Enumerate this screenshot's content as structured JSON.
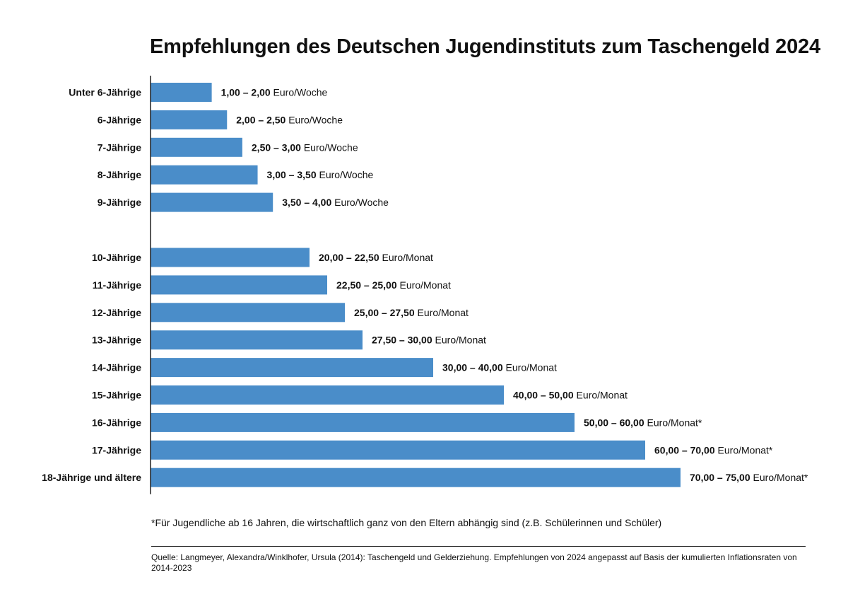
{
  "chart_data": {
    "type": "bar",
    "orientation": "horizontal",
    "title": "Empfehlungen des Deutschen Jugendinstituts zum Taschengeld 2024",
    "categories": [
      "Unter 6-Jährige",
      "6-Jährige",
      "7-Jährige",
      "8-Jährige",
      "9-Jährige",
      "10-Jährige",
      "11-Jährige",
      "12-Jährige",
      "13-Jährige",
      "14-Jährige",
      "15-Jährige",
      "16-Jährige",
      "17-Jährige",
      "18-Jährige und ältere"
    ],
    "values": [
      2.0,
      2.5,
      3.0,
      3.5,
      4.0,
      22.5,
      25.0,
      27.5,
      30.0,
      40.0,
      50.0,
      60.0,
      70.0,
      75.0
    ],
    "range_labels": [
      "1,00 – 2,00",
      "2,00 – 2,50",
      "2,50 – 3,00",
      "3,00 – 3,50",
      "3,50 – 4,00",
      "20,00 – 22,50",
      "22,50 – 25,00",
      "25,00 – 27,50",
      "27,50 – 30,00",
      "30,00 – 40,00",
      "40,00 – 50,00",
      "50,00 – 60,00",
      "60,00 – 70,00",
      "70,00 – 75,00"
    ],
    "unit_labels": [
      "Euro/Woche",
      "Euro/Woche",
      "Euro/Woche",
      "Euro/Woche",
      "Euro/Woche",
      "Euro/Monat",
      "Euro/Monat",
      "Euro/Monat",
      "Euro/Monat",
      "Euro/Monat",
      "Euro/Monat",
      "Euro/Monat*",
      "Euro/Monat*",
      "Euro/Monat*"
    ],
    "groups": [
      {
        "unit": "Euro/Woche",
        "count": 5
      },
      {
        "unit": "Euro/Monat",
        "count": 9
      }
    ],
    "xlim": [
      0,
      75
    ],
    "xlabel": "",
    "ylabel": "",
    "grid": false,
    "legend": "none",
    "bar_color": "#4a8dc9"
  },
  "footnote": "*Für Jugendliche ab 16 Jahren, die wirtschaftlich ganz von den Eltern abhängig sind (z.B. Schülerinnen und Schüler)",
  "source": "Quelle: Langmeyer, Alexandra/Winklhofer, Ursula (2014): Taschengeld und Gelderziehung. Empfehlungen von 2024 angepasst auf Basis der kumulierten Inflationsraten von 2014-2023"
}
